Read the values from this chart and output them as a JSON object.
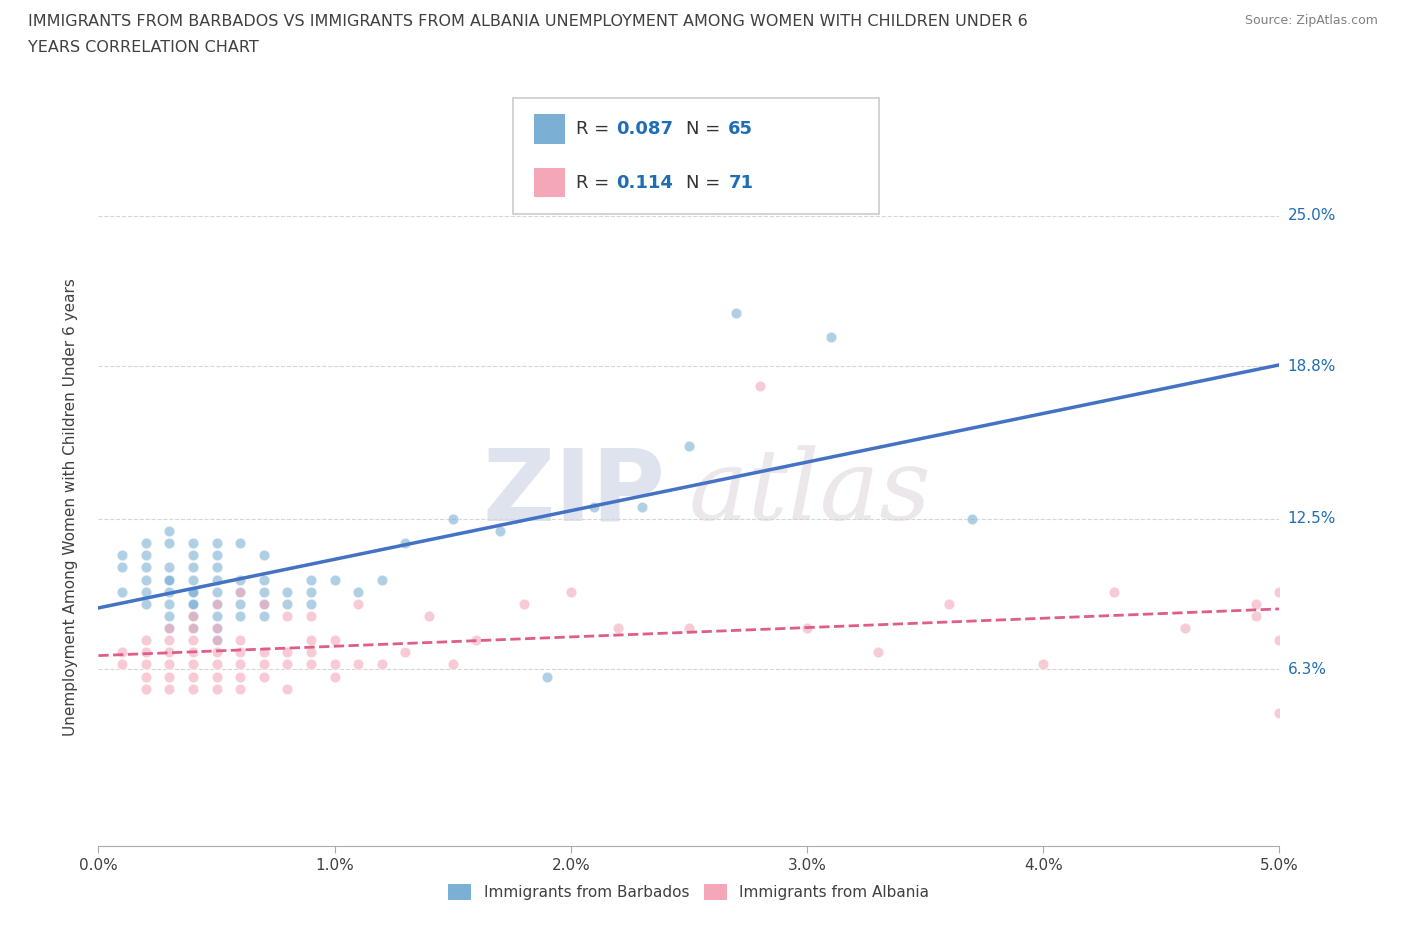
{
  "title_line1": "IMMIGRANTS FROM BARBADOS VS IMMIGRANTS FROM ALBANIA UNEMPLOYMENT AMONG WOMEN WITH CHILDREN UNDER 6",
  "title_line2": "YEARS CORRELATION CHART",
  "source": "Source: ZipAtlas.com",
  "ylabel": "Unemployment Among Women with Children Under 6 years",
  "xlim": [
    0.0,
    0.05
  ],
  "ylim": [
    -0.01,
    0.27
  ],
  "xtick_labels": [
    "0.0%",
    "1.0%",
    "2.0%",
    "3.0%",
    "4.0%",
    "5.0%"
  ],
  "xtick_values": [
    0.0,
    0.01,
    0.02,
    0.03,
    0.04,
    0.05
  ],
  "ytick_labels": [
    "6.3%",
    "12.5%",
    "18.8%",
    "25.0%"
  ],
  "ytick_values": [
    0.063,
    0.125,
    0.188,
    0.25
  ],
  "barbados_color": "#7BAFD4",
  "albania_color": "#F4A7B9",
  "barbados_line_color": "#4472C4",
  "albania_line_color": "#E05C8A",
  "legend_R1": "0.087",
  "legend_N1": "65",
  "legend_R2": "0.114",
  "legend_N2": "71",
  "legend_label1": "Immigrants from Barbados",
  "legend_label2": "Immigrants from Albania",
  "watermark_zip": "ZIP",
  "watermark_atlas": "atlas",
  "background_color": "#ffffff",
  "grid_color": "#cccccc",
  "title_color": "#404040",
  "axis_label_color": "#404040",
  "source_color": "#808080",
  "legend_text_color": "#1F6DB5",
  "right_tick_color": "#1F6DB5",
  "barbados_x": [
    0.001,
    0.001,
    0.001,
    0.002,
    0.002,
    0.002,
    0.002,
    0.002,
    0.002,
    0.003,
    0.003,
    0.003,
    0.003,
    0.003,
    0.003,
    0.003,
    0.003,
    0.003,
    0.004,
    0.004,
    0.004,
    0.004,
    0.004,
    0.004,
    0.004,
    0.004,
    0.004,
    0.004,
    0.005,
    0.005,
    0.005,
    0.005,
    0.005,
    0.005,
    0.005,
    0.005,
    0.005,
    0.006,
    0.006,
    0.006,
    0.006,
    0.006,
    0.007,
    0.007,
    0.007,
    0.007,
    0.007,
    0.008,
    0.008,
    0.009,
    0.009,
    0.009,
    0.01,
    0.011,
    0.012,
    0.013,
    0.015,
    0.017,
    0.019,
    0.021,
    0.023,
    0.025,
    0.027,
    0.031,
    0.037
  ],
  "barbados_y": [
    0.105,
    0.11,
    0.095,
    0.095,
    0.1,
    0.105,
    0.11,
    0.09,
    0.115,
    0.08,
    0.085,
    0.09,
    0.095,
    0.1,
    0.105,
    0.115,
    0.12,
    0.1,
    0.08,
    0.085,
    0.09,
    0.095,
    0.1,
    0.105,
    0.11,
    0.115,
    0.09,
    0.095,
    0.075,
    0.08,
    0.085,
    0.09,
    0.095,
    0.1,
    0.105,
    0.11,
    0.115,
    0.085,
    0.09,
    0.095,
    0.1,
    0.115,
    0.085,
    0.09,
    0.095,
    0.1,
    0.11,
    0.09,
    0.095,
    0.09,
    0.095,
    0.1,
    0.1,
    0.095,
    0.1,
    0.115,
    0.125,
    0.12,
    0.06,
    0.13,
    0.13,
    0.155,
    0.21,
    0.2,
    0.125
  ],
  "albania_x": [
    0.001,
    0.001,
    0.002,
    0.002,
    0.002,
    0.002,
    0.002,
    0.003,
    0.003,
    0.003,
    0.003,
    0.003,
    0.003,
    0.004,
    0.004,
    0.004,
    0.004,
    0.004,
    0.004,
    0.004,
    0.005,
    0.005,
    0.005,
    0.005,
    0.005,
    0.005,
    0.005,
    0.006,
    0.006,
    0.006,
    0.006,
    0.006,
    0.006,
    0.007,
    0.007,
    0.007,
    0.007,
    0.008,
    0.008,
    0.008,
    0.008,
    0.009,
    0.009,
    0.009,
    0.009,
    0.01,
    0.01,
    0.01,
    0.011,
    0.011,
    0.012,
    0.013,
    0.014,
    0.015,
    0.016,
    0.018,
    0.02,
    0.022,
    0.025,
    0.028,
    0.03,
    0.033,
    0.036,
    0.04,
    0.043,
    0.046,
    0.049,
    0.049,
    0.05,
    0.05,
    0.05
  ],
  "albania_y": [
    0.065,
    0.07,
    0.055,
    0.06,
    0.065,
    0.07,
    0.075,
    0.055,
    0.06,
    0.065,
    0.07,
    0.075,
    0.08,
    0.055,
    0.06,
    0.065,
    0.07,
    0.075,
    0.08,
    0.085,
    0.055,
    0.06,
    0.065,
    0.07,
    0.075,
    0.08,
    0.09,
    0.055,
    0.06,
    0.065,
    0.07,
    0.075,
    0.095,
    0.06,
    0.065,
    0.07,
    0.09,
    0.055,
    0.065,
    0.07,
    0.085,
    0.065,
    0.07,
    0.075,
    0.085,
    0.06,
    0.065,
    0.075,
    0.065,
    0.09,
    0.065,
    0.07,
    0.085,
    0.065,
    0.075,
    0.09,
    0.095,
    0.08,
    0.08,
    0.18,
    0.08,
    0.07,
    0.09,
    0.065,
    0.095,
    0.08,
    0.085,
    0.09,
    0.095,
    0.075,
    0.045
  ]
}
